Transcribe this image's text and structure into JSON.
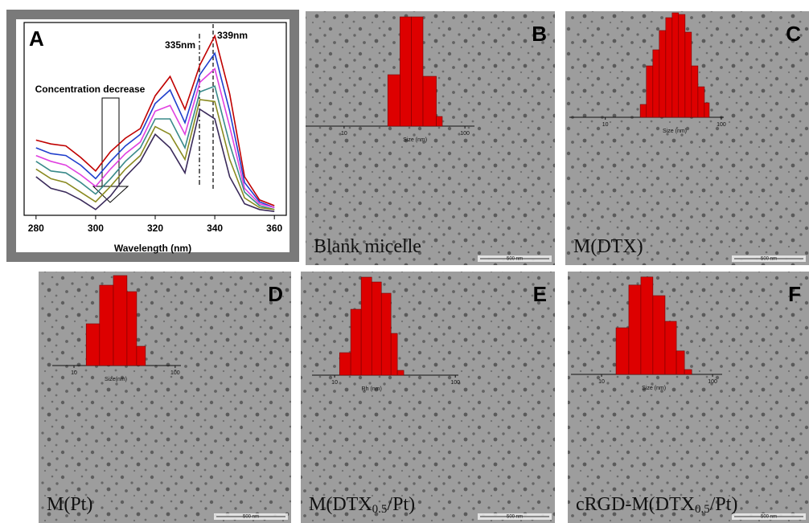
{
  "panels": [
    {
      "letter": "A",
      "chart": {
        "type": "line",
        "xlabel": "Wavelength (nm)",
        "annotations": [
          "335nm",
          "339nm",
          "Concentration decrease"
        ],
        "x": [
          280,
          285,
          290,
          295,
          300,
          305,
          310,
          315,
          320,
          325,
          330,
          335,
          340,
          345,
          350,
          355,
          360
        ],
        "xlim": [
          276,
          364
        ],
        "xticks": [
          280,
          300,
          320,
          340,
          360
        ],
        "ylim": [
          0,
          1
        ],
        "series": [
          {
            "color": "#c00000",
            "values": [
              0.39,
              0.37,
              0.36,
              0.3,
              0.23,
              0.33,
              0.4,
              0.45,
              0.62,
              0.72,
              0.55,
              0.78,
              0.93,
              0.63,
              0.2,
              0.08,
              0.05
            ]
          },
          {
            "color": "#1f3fcc",
            "values": [
              0.35,
              0.32,
              0.31,
              0.26,
              0.19,
              0.28,
              0.36,
              0.42,
              0.58,
              0.65,
              0.48,
              0.73,
              0.84,
              0.54,
              0.17,
              0.07,
              0.04
            ]
          },
          {
            "color": "#e040e0",
            "values": [
              0.31,
              0.28,
              0.26,
              0.21,
              0.15,
              0.24,
              0.32,
              0.38,
              0.54,
              0.57,
              0.42,
              0.69,
              0.76,
              0.46,
              0.14,
              0.06,
              0.04
            ]
          },
          {
            "color": "#3a8a8a",
            "values": [
              0.28,
              0.23,
              0.22,
              0.17,
              0.11,
              0.19,
              0.28,
              0.35,
              0.5,
              0.5,
              0.35,
              0.64,
              0.67,
              0.37,
              0.12,
              0.05,
              0.03
            ]
          },
          {
            "color": "#8a8a20",
            "values": [
              0.24,
              0.19,
              0.17,
              0.12,
              0.07,
              0.15,
              0.24,
              0.31,
              0.46,
              0.42,
              0.29,
              0.6,
              0.59,
              0.29,
              0.09,
              0.04,
              0.03
            ]
          },
          {
            "color": "#3a2a5a",
            "values": [
              0.2,
              0.14,
              0.12,
              0.08,
              0.03,
              0.1,
              0.2,
              0.28,
              0.42,
              0.35,
              0.22,
              0.55,
              0.5,
              0.2,
              0.06,
              0.03,
              0.02
            ]
          }
        ]
      }
    },
    {
      "letter": "B",
      "caption": {
        "main": "Blank micelle"
      },
      "scale_bar": "500 nm",
      "chart": {
        "type": "histogram",
        "xlabel": "Size (nm)",
        "xlog": true,
        "xlim": [
          4.8,
          120
        ],
        "xticks": [
          10,
          100
        ],
        "ylim": [
          0,
          34
        ],
        "color": "#dd0000",
        "bins": [
          23,
          29,
          36,
          45,
          58,
          65
        ],
        "counts": [
          16,
          34,
          34,
          15.5,
          3
        ]
      }
    },
    {
      "letter": "C",
      "caption": {
        "main": "M(DTX)"
      },
      "scale_bar": "500 nm",
      "chart": {
        "type": "histogram",
        "xlabel": "Size (nm)",
        "xlog": true,
        "xlim": [
          4.9,
          105
        ],
        "xticks": [
          10,
          100
        ],
        "ylim": [
          0,
          34
        ],
        "color": "#dd0000",
        "bins": [
          20,
          22.6,
          25.7,
          29.2,
          33.2,
          37.7,
          42.8,
          48.7,
          55.3,
          62.9,
          71.5,
          78.7
        ],
        "counts": [
          4,
          16,
          21,
          27,
          31,
          32.5,
          32,
          26.5,
          16,
          9.5,
          4.5
        ]
      }
    },
    {
      "letter": "D",
      "caption": {
        "main": "M(Pt)"
      },
      "scale_bar": "500 nm",
      "chart": {
        "type": "histogram",
        "xlabel": "Size(nm)",
        "xlog": true,
        "xlim": [
          6.1,
          114
        ],
        "xticks": [
          10,
          100
        ],
        "ylim": [
          0,
          34
        ],
        "color": "#dd0000",
        "bins": [
          13.2,
          17.9,
          24.5,
          33.4,
          41.6,
          50.8
        ],
        "counts": [
          13,
          25,
          28,
          23,
          6
        ]
      }
    },
    {
      "letter": "E",
      "caption": {
        "main": "M(DTX",
        "sub": "0.5",
        "tail": "/Pt)"
      },
      "scale_bar": "500 nm",
      "chart": {
        "type": "histogram",
        "xlabel": "Rh (nm)",
        "xlog": true,
        "xlim": [
          6.5,
          106
        ],
        "xticks": [
          10,
          100
        ],
        "ylim": [
          0,
          34
        ],
        "color": "#dd0000",
        "bins": [
          11,
          13.6,
          16.6,
          20.3,
          24.4,
          29.3,
          33.1,
          37.4
        ],
        "counts": [
          7,
          20.5,
          30.5,
          29,
          25.5,
          13,
          1.5
        ]
      }
    },
    {
      "letter": "F",
      "caption": {
        "main": "cRGD-M(DTX",
        "sub": "0.5",
        "tail": "/Pt)"
      },
      "scale_bar": "500 nm",
      "chart": {
        "type": "histogram",
        "xlabel": "Size (nm)",
        "xlog": true,
        "xlim": [
          5.3,
          122
        ],
        "xticks": [
          10,
          100
        ],
        "ylim": [
          0,
          34
        ],
        "color": "#dd0000",
        "bins": [
          13.5,
          17.6,
          22.6,
          29,
          37.3,
          47.2,
          55.8,
          64.9
        ],
        "counts": [
          14.5,
          27.8,
          30.3,
          24.5,
          16.5,
          7.3,
          1.5
        ]
      }
    }
  ]
}
